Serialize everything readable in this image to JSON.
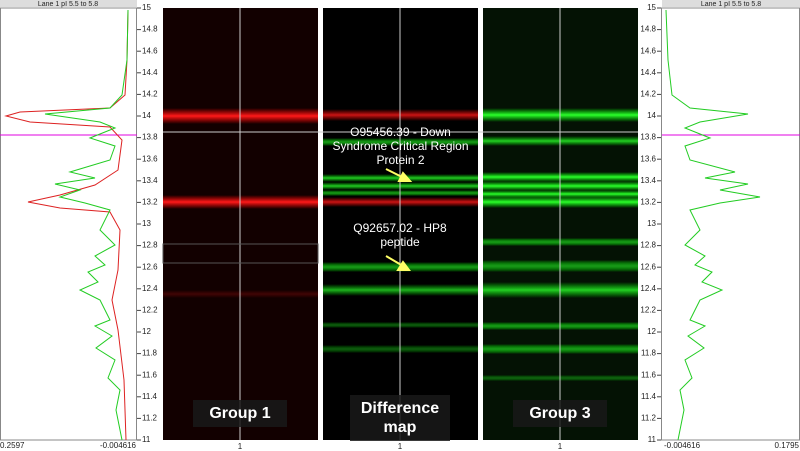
{
  "left_profile": {
    "header": "Lane 1  pI 5.5 to 5.8",
    "x_labels": [
      "0.2597",
      "-0.004616"
    ]
  },
  "right_profile": {
    "header": "Lane 1  pI 5.5 to 5.8",
    "x_labels": [
      "-0.004616",
      "0.1795"
    ]
  },
  "y_axis": {
    "ticks": [
      15,
      14.8,
      14.6,
      14.4,
      14.2,
      14,
      13.8,
      13.6,
      13.4,
      13.2,
      13,
      12.8,
      12.6,
      12.4,
      12.2,
      12,
      11.8,
      11.6,
      11.4,
      11.2,
      11
    ]
  },
  "lanes": [
    {
      "label": "Group 1",
      "number": 1
    },
    {
      "label": "Difference map",
      "number": 1
    },
    {
      "label": "Group 3",
      "number": 1
    }
  ],
  "annotations": [
    "O95456.39 - Down Syndrome Critical Region Protein 2",
    "Q92657.02 - HP8 peptide"
  ]
}
